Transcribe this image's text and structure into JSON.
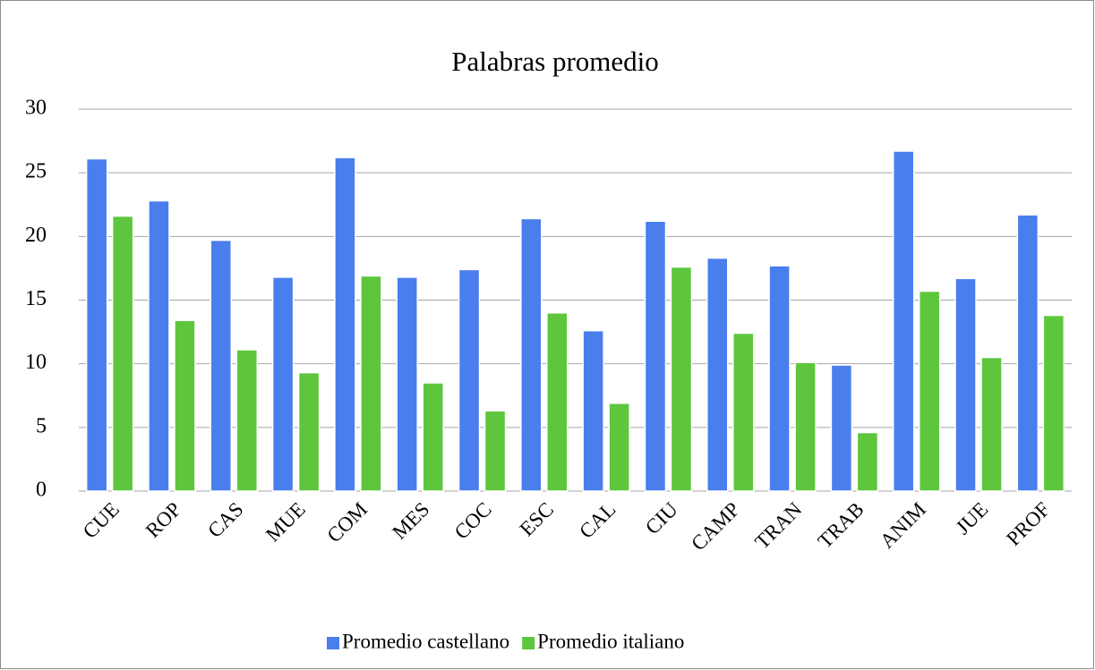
{
  "chart_data": {
    "type": "bar",
    "title": "Palabras promedio",
    "categories": [
      "CUE",
      "ROP",
      "CAS",
      "MUE",
      "COM",
      "MES",
      "COC",
      "ESC",
      "CAL",
      "CIU",
      "CAMP",
      "TRAN",
      "TRAB",
      "ANIM",
      "JUE",
      "PROF"
    ],
    "series": [
      {
        "name": "Promedio castellano",
        "color": "#4a7eed",
        "values": [
          26.1,
          22.8,
          19.7,
          16.8,
          26.2,
          16.8,
          17.4,
          21.4,
          12.6,
          21.2,
          18.3,
          17.7,
          9.9,
          26.7,
          16.7,
          21.7
        ]
      },
      {
        "name": "Promedio italiano",
        "color": "#5dc63c",
        "values": [
          21.6,
          13.4,
          11.1,
          9.3,
          16.9,
          8.5,
          6.3,
          14.0,
          6.9,
          17.6,
          12.4,
          10.1,
          4.6,
          15.7,
          10.5,
          13.8
        ]
      }
    ],
    "ylim": [
      0,
      30
    ],
    "yticks": [
      0,
      5,
      10,
      15,
      20,
      25,
      30
    ],
    "grid": true,
    "legend": "bottom"
  }
}
